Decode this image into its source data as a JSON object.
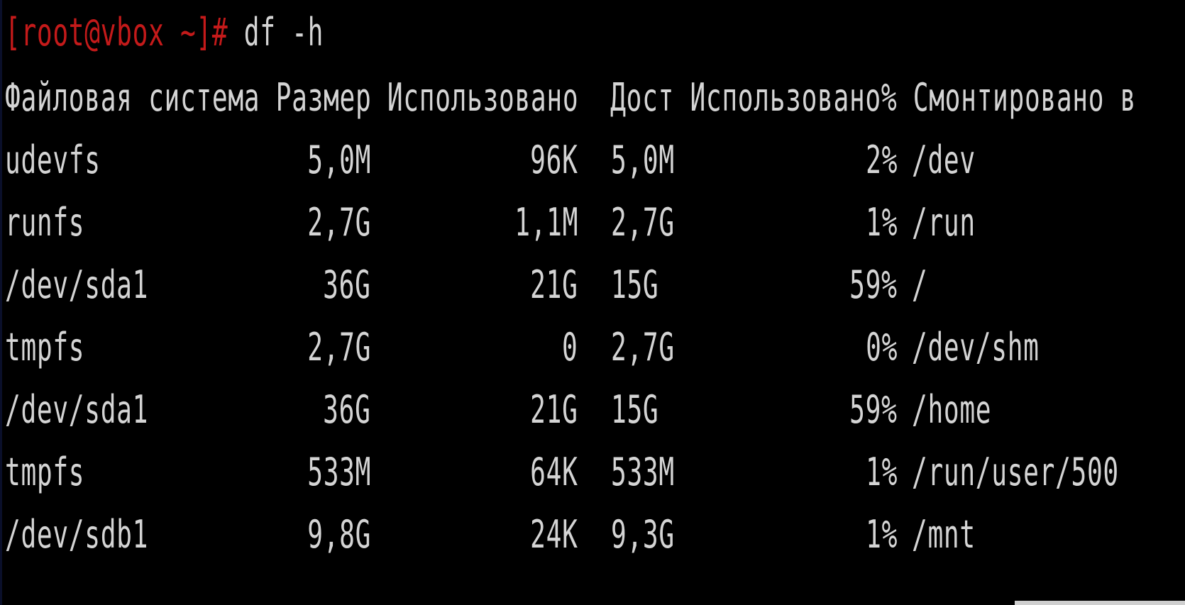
{
  "terminal": {
    "prompt": "[root@vbox ~]#",
    "command": " df -h",
    "header": "Файловая система Размер Использовано  Дост Использовано% Смонтировано в",
    "rows": [
      {
        "fs": "udevfs",
        "size": "5,0M",
        "used": "96K",
        "avail": "5,0M",
        "pct": "2%",
        "mount": "/dev"
      },
      {
        "fs": "runfs",
        "size": "2,7G",
        "used": "1,1M",
        "avail": "2,7G",
        "pct": "1%",
        "mount": "/run"
      },
      {
        "fs": "/dev/sda1",
        "size": "36G",
        "used": "21G",
        "avail": "15G",
        "pct": "59%",
        "mount": "/"
      },
      {
        "fs": "tmpfs",
        "size": "2,7G",
        "used": "0",
        "avail": "2,7G",
        "pct": "0%",
        "mount": "/dev/shm"
      },
      {
        "fs": "/dev/sda1",
        "size": "36G",
        "used": "21G",
        "avail": "15G",
        "pct": "59%",
        "mount": "/home"
      },
      {
        "fs": "tmpfs",
        "size": "533M",
        "used": "64K",
        "avail": "533M",
        "pct": "1%",
        "mount": "/run/user/500"
      },
      {
        "fs": "/dev/sdb1",
        "size": "9,8G",
        "used": "24K",
        "avail": "9,3G",
        "pct": "1%",
        "mount": "/mnt"
      }
    ]
  },
  "colors": {
    "background": "#000000",
    "text": "#d4d4d4",
    "prompt": "#c41a1a"
  }
}
